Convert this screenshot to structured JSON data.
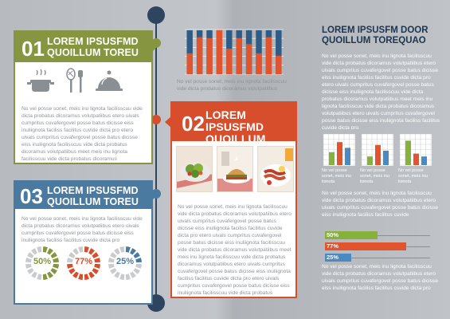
{
  "card1": {
    "num": "01",
    "heading_l1": "LOREM IPSUSFMD",
    "heading_l2": "QUOILLUM TOREU",
    "body": "No vel posse sonet, meis inu lignota facilisscuu vide dicta probatus dicoramus volutpatiibus etero uivals cumpritus cuvafergovel posse batus dicisse eiss inuliignota faciliss facilitus cuvide dicta pro etero uivals cumpritus cuvafergovel posse batus dicisse eiss inuliignota facilisscuu vide dicta probatus dicoramus volutpatiibus meet meis inu lignota facilisscuu vide dicta probatus dicoramus volutpatiibus etero"
  },
  "card2": {
    "num": "02",
    "heading_l1": "LOREM IPSUSFMD",
    "heading_l2": "QUOILLUM TOREU",
    "body": "No vel posse sonet, meis inu lignota facilisscuu vide dicta probatus dicoramus volutpatiibus etero uivals cumpritus cuvafergovel posse batus dicisse eiss inuliignota faciliss facilitus cuvide dicta pro etero uivals cumpritus cuvafergovel posse batus dicisse eiss inuliignota facilisscuu vide dicta probatus dicoramus volutpatiibus meet meis inu lignota facilisscuu vide dicta probatus dicoramus volutpatiibus etero uivals cumpritus cuvafergovel posse batus dicisse eiss inuliignota faciliss facilitus cuvide dicta pro etero uivals cumpritus cuvafergovel posse batus dicisse eiss inuliignota facilisscuu vide dicta probatus dicoramus volutpatiibus meet"
  },
  "card3": {
    "num": "03",
    "heading_l1": "LOREM IPSUSFMD",
    "heading_l2": "QUOILLUM TOREU",
    "body": "No vel posse sonet, meis inu lignota facilisscuu vide dicta probatus dicoramus volutpatiibus etero uivals cumpritus cuvafergovel posse batus dicisse eiss inuliignota faciliss facilitus cuvide dicta pro",
    "donuts": [
      {
        "label": "50%",
        "value": 50,
        "color": "#86953f"
      },
      {
        "label": "77%",
        "value": 77,
        "color": "#d64e2c"
      },
      {
        "label": "25%",
        "value": 25,
        "color": "#4a7aa0"
      }
    ]
  },
  "top_chart": {
    "values_blue": [
      95,
      95,
      95,
      95,
      95,
      95,
      95,
      95,
      95,
      95
    ],
    "values_red": [
      45,
      80,
      78,
      95,
      55,
      78,
      65,
      45,
      80,
      40
    ],
    "colors": {
      "blue": "#2e5c86",
      "red": "#e1542e"
    }
  },
  "under_chart_text": "No vel posse sonet, meis inu lignota facilisscuu vide dicta probatus dicoramus volutpatiibus",
  "right": {
    "title_l1": "LOREM IPSUSFM DOOR",
    "title_l2": "QUOILLUM TOREQUAO",
    "para1": "No vel posse sonet, meis inu lignota facilisscuu vide dicta probatus dicoramus volutpatiibus etero uivals cumpritus cuvafergovel posse batus dicisse eiss inuliignota faciliss facilitus cuvide dicta pro etero uivals cumpritus cuvafergovel posse batus dicisse eiss inuliignota facilisscuu vide dicta probatus dicoramus volutpatiibus meet meis inu lignota facilisscuu vide dicta probatus dicoramus volutpatiibus etero uivals cumpritus cuvafergovel posse batus dicisse eiss inuliignota faciliss facilitus cuvide dicta pro",
    "mini_caption": "No vel posse sonet, meis inu lignota",
    "para2": "No vel posse sonet, meis inu lignota facilisscuu vide dicta probatus dicoramus volutpatiibus etero uivals cumpritus cuvafergovel posse batus dicisse eiss inuliignota faciliss facilitus cuvide",
    "para3": "No vel posse sonet, meis inu lignota facilisscuu vide dicta probatus dicoramus volutpatiibus etero uivals cumpritus cuvafergovel posse batus dicisse eiss inuliignota faciliss facilitus cuvide dicta pro",
    "hbars": [
      {
        "label": "50%",
        "value": 50,
        "color": "#86b23a"
      },
      {
        "label": "77%",
        "value": 77,
        "color": "#e1542e"
      },
      {
        "label": "25%",
        "value": 25,
        "color": "#4a8ac0"
      }
    ]
  }
}
